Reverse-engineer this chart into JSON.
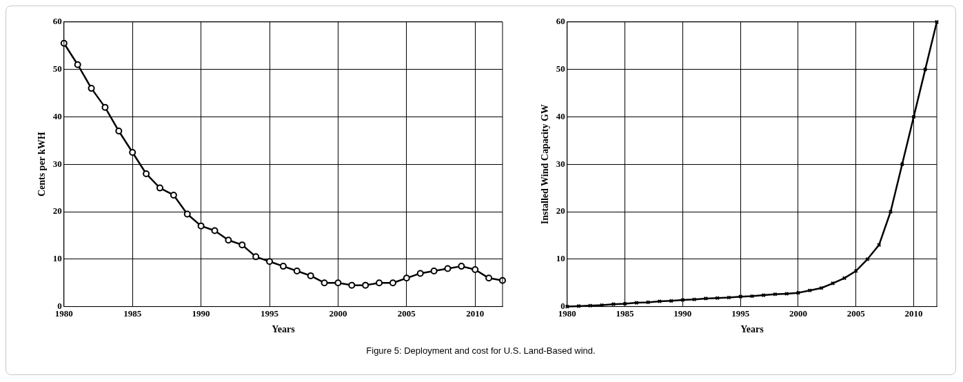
{
  "chart_data": [
    {
      "type": "line",
      "xlabel": "Years",
      "ylabel": "Cents per kWH",
      "xlim": [
        1980,
        2012
      ],
      "ylim": [
        0,
        60
      ],
      "xticks": [
        1980,
        1985,
        1990,
        1995,
        2000,
        2005,
        2010
      ],
      "yticks": [
        0,
        10,
        20,
        30,
        40,
        50,
        60
      ],
      "grid": true,
      "marker": "circle",
      "line_style": "solid",
      "x": [
        1980,
        1981,
        1982,
        1983,
        1984,
        1985,
        1986,
        1987,
        1988,
        1989,
        1990,
        1991,
        1992,
        1993,
        1994,
        1995,
        1996,
        1997,
        1998,
        1999,
        2000,
        2001,
        2002,
        2003,
        2004,
        2005,
        2006,
        2007,
        2008,
        2009,
        2010,
        2011,
        2012
      ],
      "series": [
        {
          "color": "#000000",
          "values": [
            55.5,
            51,
            46,
            42,
            37,
            32.5,
            28,
            25,
            23.5,
            19.5,
            17,
            16,
            14,
            13,
            10.5,
            9.5,
            8.5,
            7.5,
            6.5,
            5,
            5,
            4.5,
            4.5,
            5,
            5,
            6,
            7,
            7.5,
            8,
            8.5,
            7.8,
            6,
            5.5
          ]
        }
      ]
    },
    {
      "type": "line",
      "xlabel": "Years",
      "ylabel": "Installed Wind Capacity GW",
      "xlim": [
        1980,
        2012
      ],
      "ylim": [
        0,
        60
      ],
      "xticks": [
        1980,
        1985,
        1990,
        1995,
        2000,
        2005,
        2010
      ],
      "yticks": [
        0,
        10,
        20,
        30,
        40,
        50,
        60
      ],
      "grid": true,
      "marker": "cross",
      "line_style": "solid",
      "x": [
        1980,
        1981,
        1982,
        1983,
        1984,
        1985,
        1986,
        1987,
        1988,
        1989,
        1990,
        1991,
        1992,
        1993,
        1994,
        1995,
        1996,
        1997,
        1998,
        1999,
        2000,
        2001,
        2002,
        2003,
        2004,
        2005,
        2006,
        2007,
        2008,
        2009,
        2010,
        2011,
        2012
      ],
      "series": [
        {
          "color": "#000000",
          "values": [
            0,
            0.1,
            0.2,
            0.3,
            0.5,
            0.6,
            0.8,
            0.9,
            1.1,
            1.2,
            1.4,
            1.5,
            1.7,
            1.8,
            1.9,
            2.1,
            2.2,
            2.4,
            2.6,
            2.7,
            2.9,
            3.4,
            3.9,
            4.9,
            6,
            7.5,
            10,
            13,
            20,
            30,
            40,
            50,
            60
          ]
        }
      ],
      "annotations": [
        "Figure 5: Deployment and cost for U.S. Land-Based wind."
      ]
    }
  ]
}
